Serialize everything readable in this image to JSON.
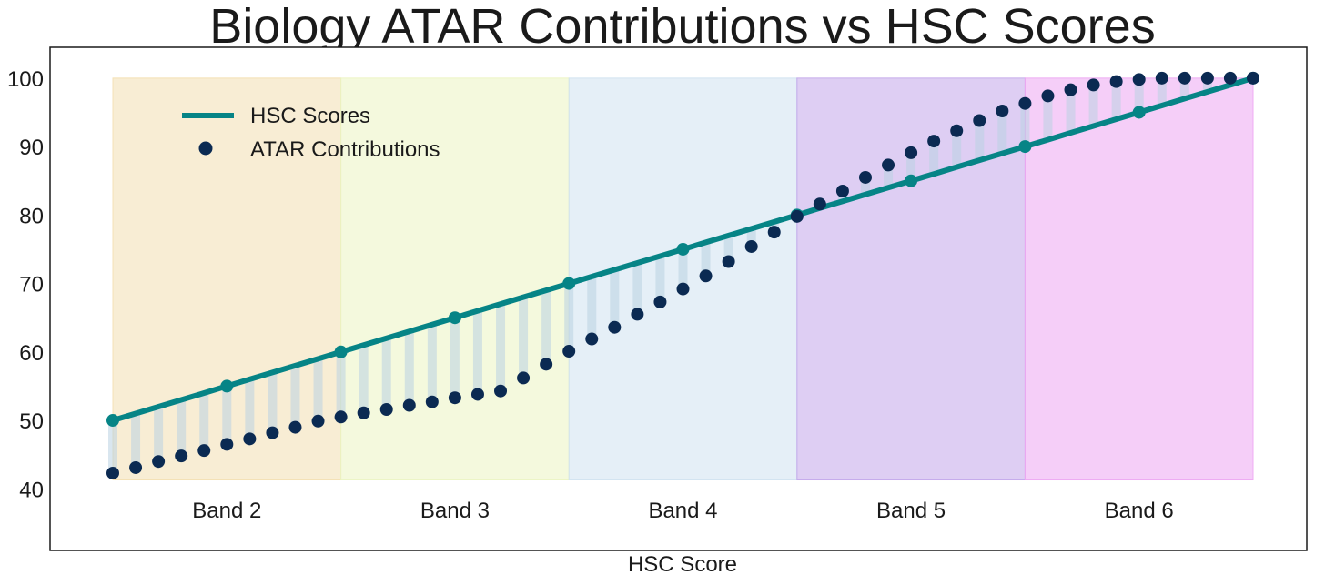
{
  "chart_data": {
    "type": "line",
    "title": "Biology ATAR Contributions vs HSC Scores",
    "xlabel": "HSC Score",
    "ylabel": "",
    "ylim": [
      31,
      104.5
    ],
    "yticks": [
      40,
      50,
      60,
      70,
      80,
      90,
      100
    ],
    "grid": false,
    "legend_position": "top-left",
    "x": [
      50,
      51,
      52,
      53,
      54,
      55,
      56,
      57,
      58,
      59,
      60,
      61,
      62,
      63,
      64,
      65,
      66,
      67,
      68,
      69,
      70,
      71,
      72,
      73,
      74,
      75,
      76,
      77,
      78,
      79,
      80,
      81,
      82,
      83,
      84,
      85,
      86,
      87,
      88,
      89,
      90,
      91,
      92,
      93,
      94,
      95,
      96,
      97,
      98,
      99,
      100
    ],
    "series": [
      {
        "name": "HSC Scores",
        "kind": "line",
        "color": "#068486",
        "values": [
          50,
          51,
          52,
          53,
          54,
          55,
          56,
          57,
          58,
          59,
          60,
          61,
          62,
          63,
          64,
          65,
          66,
          67,
          68,
          69,
          70,
          71,
          72,
          73,
          74,
          75,
          76,
          77,
          78,
          79,
          80,
          81,
          82,
          83,
          84,
          85,
          86,
          87,
          88,
          89,
          90,
          91,
          92,
          93,
          94,
          95,
          96,
          97,
          98,
          99,
          100
        ],
        "marker_x": [
          50,
          55,
          60,
          65,
          70,
          75,
          80,
          85,
          90,
          95,
          100
        ]
      },
      {
        "name": "ATAR Contributions",
        "kind": "scatter",
        "color": "#0b2a52",
        "values": [
          42.3,
          43.1,
          44.0,
          44.8,
          45.6,
          46.5,
          47.3,
          48.2,
          49.0,
          49.9,
          50.5,
          51.1,
          51.6,
          52.2,
          52.7,
          53.3,
          53.8,
          54.3,
          56.2,
          58.2,
          60.1,
          61.9,
          63.6,
          65.5,
          67.3,
          69.2,
          71.1,
          73.2,
          75.4,
          77.5,
          79.8,
          81.6,
          83.5,
          85.5,
          87.3,
          89.1,
          90.8,
          92.3,
          93.8,
          95.2,
          96.3,
          97.4,
          98.3,
          99.0,
          99.5,
          99.8,
          100.0,
          100.0,
          100.0,
          100.0,
          100.0
        ]
      }
    ],
    "bands": [
      {
        "label": "Band 2",
        "start": 50,
        "end": 60,
        "color": "#f3dfb0"
      },
      {
        "label": "Band 3",
        "start": 60,
        "end": 70,
        "color": "#ebf4c1"
      },
      {
        "label": "Band 4",
        "start": 70,
        "end": 80,
        "color": "#cfe2f0"
      },
      {
        "label": "Band 5",
        "start": 80,
        "end": 90,
        "color": "#c2a6ea"
      },
      {
        "label": "Band 6",
        "start": 90,
        "end": 100,
        "color": "#eda6f2"
      }
    ],
    "band_y_range": [
      41.3,
      100
    ],
    "connector_color": "#b9d2e2"
  }
}
